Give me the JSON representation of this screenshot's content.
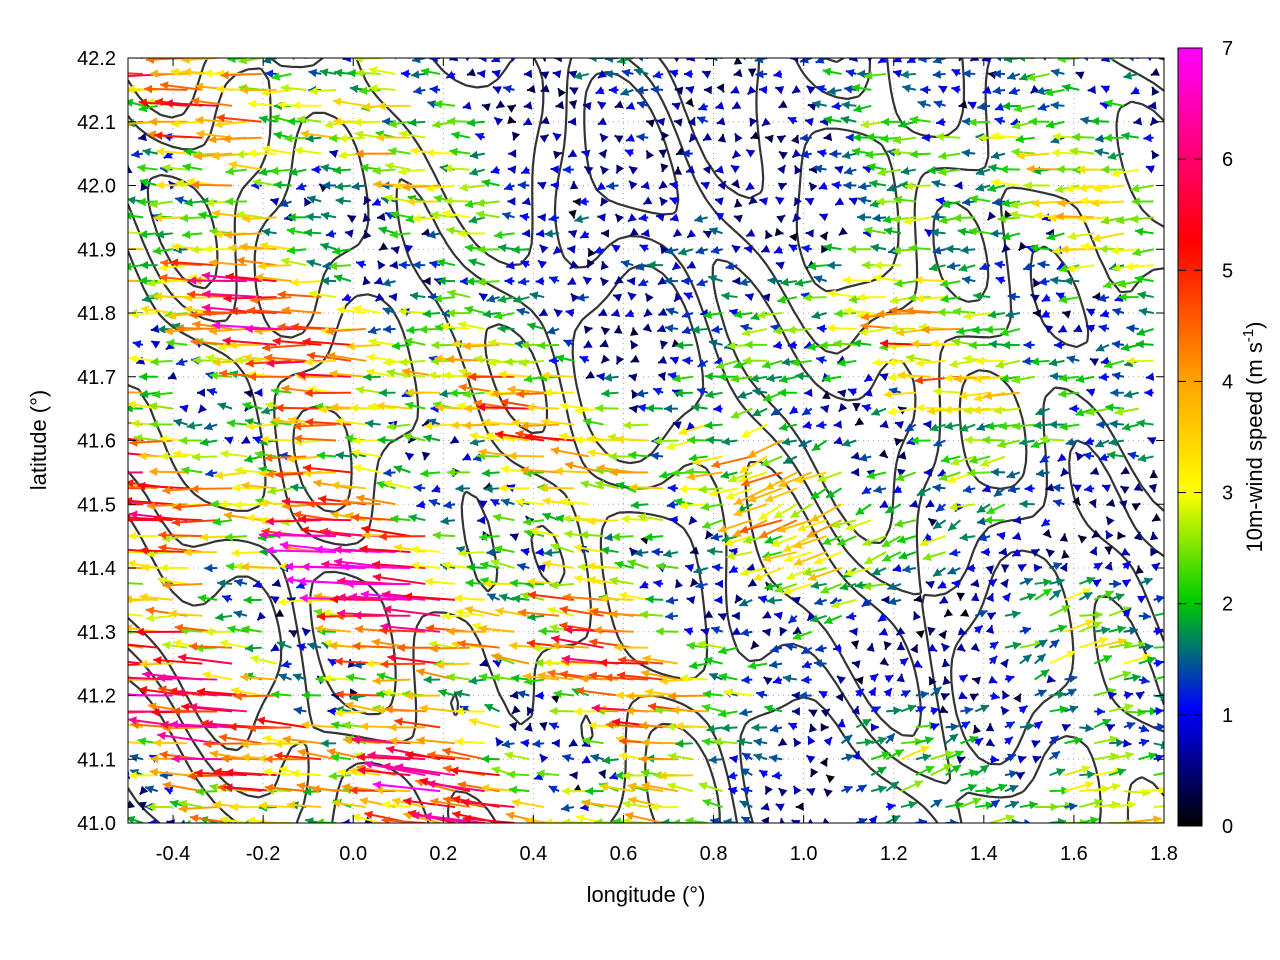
{
  "chart_data": {
    "type": "vector-field",
    "xlabel": "longitude (°)",
    "ylabel": "latitude (°)",
    "colorbar_label": "10m-wind speed (m s",
    "colorbar_label_sup": "-1",
    "colorbar_label_end": ")",
    "xlim": [
      -0.5,
      1.8
    ],
    "ylim": [
      41.0,
      42.2
    ],
    "x_ticks": [
      "-0.4",
      "-0.2",
      "0.0",
      "0.2",
      "0.4",
      "0.6",
      "0.8",
      "1.0",
      "1.2",
      "1.4",
      "1.6",
      "1.8"
    ],
    "x_tick_values": [
      -0.4,
      -0.2,
      0.0,
      0.2,
      0.4,
      0.6,
      0.8,
      1.0,
      1.2,
      1.4,
      1.6,
      1.8
    ],
    "y_ticks": [
      "41.0",
      "41.1",
      "41.2",
      "41.3",
      "41.4",
      "41.5",
      "41.6",
      "41.7",
      "41.8",
      "41.9",
      "42.0",
      "42.1",
      "42.2"
    ],
    "y_tick_values": [
      41.0,
      41.1,
      41.2,
      41.3,
      41.4,
      41.5,
      41.6,
      41.7,
      41.8,
      41.9,
      42.0,
      42.1,
      42.2
    ],
    "colorbar_range": [
      0,
      7
    ],
    "colorbar_ticks": [
      "0",
      "1",
      "2",
      "3",
      "4",
      "5",
      "6",
      "7"
    ],
    "colorbar_tick_values": [
      0,
      1,
      2,
      3,
      4,
      5,
      6,
      7
    ],
    "colormap": [
      "#000000",
      "#0000ff",
      "#00cc00",
      "#ffff00",
      "#ffa500",
      "#ff0000",
      "#ff00ff"
    ],
    "grid": true,
    "contour_color": "#333333",
    "vector_samples": [
      {
        "lon": -0.45,
        "lat": 41.45,
        "u": -6.0,
        "v": 0.3
      },
      {
        "lon": -0.3,
        "lat": 41.55,
        "u": -5.5,
        "v": 0.1
      },
      {
        "lon": 0.1,
        "lat": 41.3,
        "u": -6.5,
        "v": 0.4
      },
      {
        "lon": 0.3,
        "lat": 41.15,
        "u": -5.8,
        "v": 0.8
      },
      {
        "lon": 0.5,
        "lat": 41.42,
        "u": -4.5,
        "v": 0.5
      },
      {
        "lon": 1.2,
        "lat": 41.75,
        "u": -4.0,
        "v": 0.0
      },
      {
        "lon": 1.1,
        "lat": 41.55,
        "u": -3.5,
        "v": -1.5
      },
      {
        "lon": 1.7,
        "lat": 41.08,
        "u": 3.5,
        "v": 0.3
      },
      {
        "lon": 1.5,
        "lat": 41.15,
        "u": 2.5,
        "v": 1.0
      },
      {
        "lon": 0.8,
        "lat": 41.95,
        "u": -1.0,
        "v": 0.0
      }
    ]
  }
}
